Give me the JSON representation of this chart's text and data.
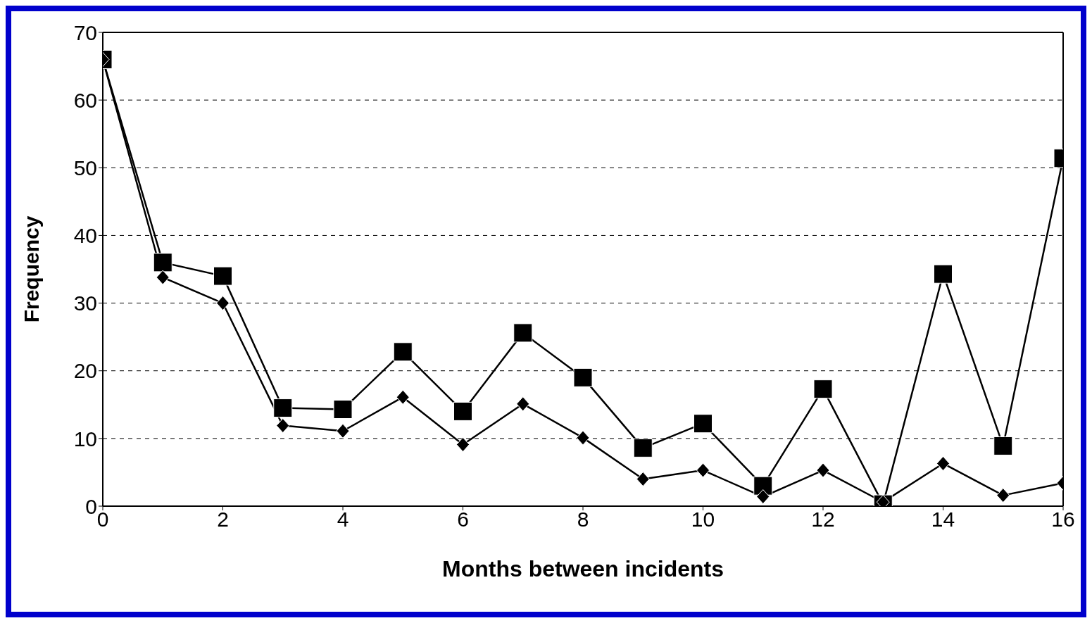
{
  "chart_data": {
    "type": "line",
    "xlabel": "Months between incidents",
    "ylabel": "Frequency",
    "x": [
      0,
      1,
      2,
      3,
      4,
      5,
      6,
      7,
      8,
      9,
      10,
      11,
      12,
      13,
      14,
      15,
      16
    ],
    "series": [
      {
        "color": "#000000",
        "marker": "square",
        "values": [
          66,
          36,
          34,
          14.5,
          14.3,
          22.8,
          14,
          25.6,
          19,
          8.6,
          12.2,
          3,
          17.3,
          0.3,
          34.3,
          8.9,
          51.4
        ]
      },
      {
        "color": "#000000",
        "marker": "diamond",
        "values": [
          66,
          33.8,
          30,
          11.9,
          11.1,
          16.1,
          9.1,
          15.1,
          10.1,
          4,
          5.3,
          1.4,
          5.3,
          0.6,
          6.3,
          1.6,
          3.4
        ]
      }
    ],
    "xlim": [
      0,
      16
    ],
    "xticks": [
      0,
      2,
      4,
      6,
      8,
      10,
      12,
      14,
      16
    ],
    "ylim": [
      0,
      70
    ],
    "yticks": [
      0,
      10,
      20,
      30,
      40,
      50,
      60,
      70
    ],
    "grid": "y",
    "line_style": "solid"
  }
}
